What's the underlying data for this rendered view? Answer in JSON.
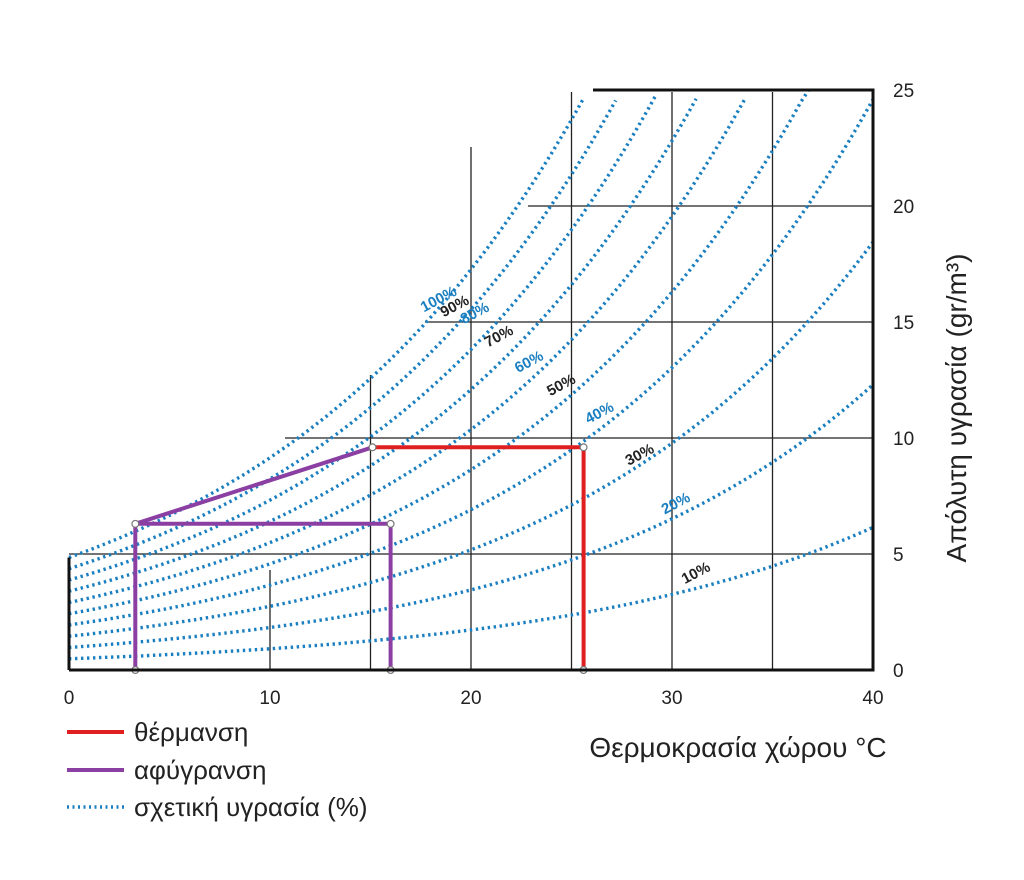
{
  "chart_data": {
    "type": "line",
    "title": "",
    "xlabel": "Θερμοκρασία χώρου °C",
    "ylabel": "Απόλυτη υγρασία (gr/m³)",
    "xlim": [
      0,
      40
    ],
    "ylim": [
      0,
      25
    ],
    "xticks": [
      "0",
      "10",
      "20",
      "30",
      "40"
    ],
    "yticks": [
      "0",
      "5",
      "10",
      "15",
      "20",
      "25"
    ],
    "grid": true,
    "relative_humidity_curves": [
      {
        "label": "100%",
        "rh": 1.0,
        "color": "#1a7fc0"
      },
      {
        "label": "90%",
        "rh": 0.9,
        "color": "#1a7fc0"
      },
      {
        "label": "80%",
        "rh": 0.8,
        "color": "#1a7fc0"
      },
      {
        "label": "70%",
        "rh": 0.7,
        "color": "#1a7fc0"
      },
      {
        "label": "60%",
        "rh": 0.6,
        "color": "#1a7fc0"
      },
      {
        "label": "50%",
        "rh": 0.5,
        "color": "#1a7fc0"
      },
      {
        "label": "40%",
        "rh": 0.4,
        "color": "#1a7fc0"
      },
      {
        "label": "30%",
        "rh": 0.3,
        "color": "#1a7fc0"
      },
      {
        "label": "20%",
        "rh": 0.2,
        "color": "#1a7fc0"
      },
      {
        "label": "10%",
        "rh": 0.1,
        "color": "#1a7fc0"
      }
    ],
    "rh_labels": [
      {
        "text": "100%",
        "x": 18.5,
        "y": 15.8,
        "color": "#1a7fc0"
      },
      {
        "text": "90%",
        "x": 19.3,
        "y": 15.5,
        "color": "#222222"
      },
      {
        "text": "80%",
        "x": 20.3,
        "y": 15.2,
        "color": "#1a7fc0"
      },
      {
        "text": "70%",
        "x": 21.5,
        "y": 14.2,
        "color": "#222222"
      },
      {
        "text": "60%",
        "x": 23.0,
        "y": 13.1,
        "color": "#1a7fc0"
      },
      {
        "text": "50%",
        "x": 24.6,
        "y": 12.1,
        "color": "#222222"
      },
      {
        "text": "40%",
        "x": 26.5,
        "y": 10.9,
        "color": "#1a7fc0"
      },
      {
        "text": "30%",
        "x": 28.5,
        "y": 9.1,
        "color": "#222222"
      },
      {
        "text": "20%",
        "x": 30.3,
        "y": 7.0,
        "color": "#1a7fc0"
      },
      {
        "text": "10%",
        "x": 31.3,
        "y": 4.0,
        "color": "#222222"
      }
    ],
    "series": [
      {
        "name": "θέρμανση",
        "color": "#e02020",
        "x": [
          15.1,
          25.6,
          25.6
        ],
        "y": [
          9.6,
          9.6,
          0
        ]
      },
      {
        "name": "αφύγρανση",
        "color": "#8b3fa3",
        "x": [
          3.3,
          3.3,
          16.0,
          16.0
        ],
        "y": [
          0,
          6.3,
          6.3,
          0
        ]
      },
      {
        "name": "αφύγρανση",
        "color": "#8b3fa3",
        "x": [
          3.3,
          15.1
        ],
        "y": [
          6.3,
          9.6
        ]
      }
    ],
    "points": [
      {
        "x": 15.1,
        "y": 9.6
      },
      {
        "x": 25.6,
        "y": 9.6
      },
      {
        "x": 25.6,
        "y": 0
      },
      {
        "x": 3.3,
        "y": 6.3
      },
      {
        "x": 16.0,
        "y": 6.3
      },
      {
        "x": 3.3,
        "y": 0
      },
      {
        "x": 16.0,
        "y": 0
      }
    ],
    "legend": [
      {
        "label": "θέρμανση",
        "color": "#e02020",
        "style": "solid"
      },
      {
        "label": "αφύγρανση",
        "color": "#8b3fa3",
        "style": "solid"
      },
      {
        "label": "σχετική υγρασία (%)",
        "color": "#1a7fc0",
        "style": "dotted"
      }
    ]
  }
}
